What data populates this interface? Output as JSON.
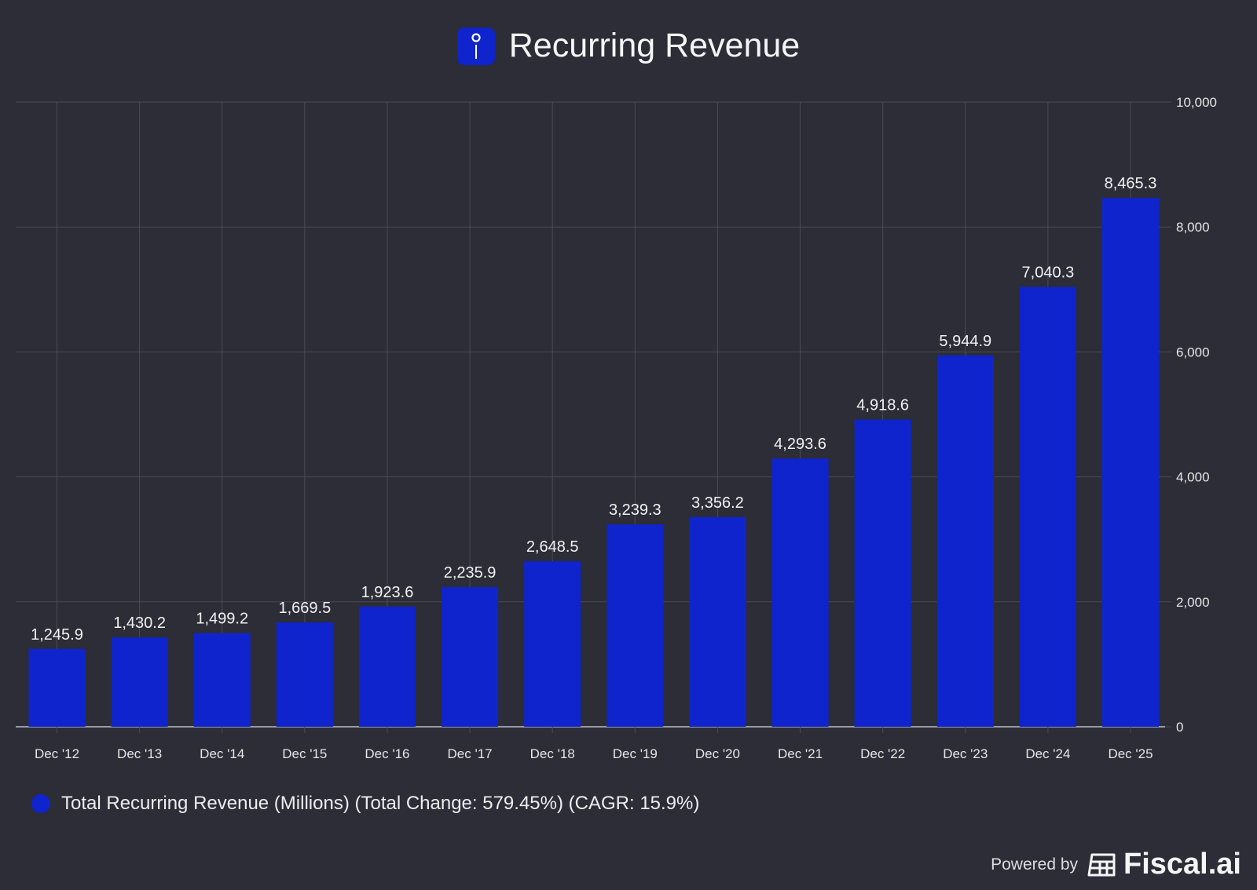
{
  "title": "Recurring Revenue",
  "title_icon": "info-icon",
  "chart_data": {
    "type": "bar",
    "title": "Recurring Revenue",
    "categories": [
      "Dec '12",
      "Dec '13",
      "Dec '14",
      "Dec '15",
      "Dec '16",
      "Dec '17",
      "Dec '18",
      "Dec '19",
      "Dec '20",
      "Dec '21",
      "Dec '22",
      "Dec '23",
      "Dec '24",
      "Dec '25"
    ],
    "values": [
      1245.9,
      1430.2,
      1499.2,
      1669.5,
      1923.6,
      2235.9,
      2648.5,
      3239.3,
      3356.2,
      4293.6,
      4918.6,
      5944.9,
      7040.3,
      8465.3
    ],
    "value_labels": [
      "1,245.9",
      "1,430.2",
      "1,499.2",
      "1,669.5",
      "1,923.6",
      "2,235.9",
      "2,648.5",
      "3,239.3",
      "3,356.2",
      "4,293.6",
      "4,918.6",
      "5,944.9",
      "7,040.3",
      "8,465.3"
    ],
    "ylim": [
      0,
      10000
    ],
    "yticks": [
      0,
      2000,
      4000,
      6000,
      8000,
      10000
    ],
    "ytick_labels": [
      "0",
      "2,000",
      "4,000",
      "6,000",
      "8,000",
      "10,000"
    ],
    "y_axis_side": "right",
    "grid": true,
    "xlabel": "",
    "ylabel": "",
    "legend_placement": "bottom-left",
    "series_color": "#0f24cc"
  },
  "legend": {
    "label": "Total Recurring Revenue (Millions) (Total Change: 579.45%) (CAGR: 15.9%)"
  },
  "footer": {
    "powered_by": "Powered by",
    "brand": "Fiscal.ai"
  },
  "colors": {
    "background": "#2c2d36",
    "bar": "#0f24cc",
    "grid": "#4a4b55"
  }
}
